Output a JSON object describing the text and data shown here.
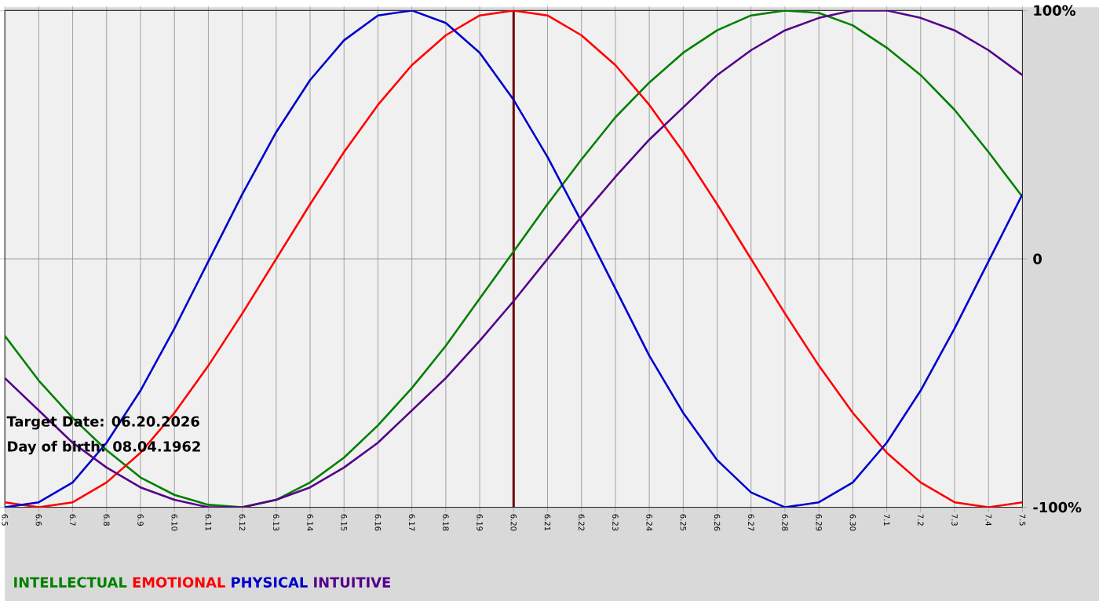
{
  "chart_data": {
    "type": "line",
    "categories": [
      "6.5",
      "6.6",
      "6.7",
      "6.8",
      "6.9",
      "6.10",
      "6.11",
      "6.12",
      "6.13",
      "6.14",
      "6.15",
      "6.16",
      "6.17",
      "6.18",
      "6.19",
      "6.20",
      "6.21",
      "6.22",
      "6.23",
      "6.24",
      "6.25",
      "6.26",
      "6.27",
      "6.28",
      "6.29",
      "6.30",
      "7.1",
      "7.2",
      "7.3",
      "7.4",
      "7.5"
    ],
    "series": [
      {
        "name": "INTELLECTUAL",
        "color": "#008000",
        "values": [
          -31,
          -49,
          -64,
          -77,
          -88,
          -95,
          -99,
          -100,
          -97,
          -90,
          -80,
          -67,
          -52,
          -35,
          -16,
          3,
          22,
          40,
          57,
          71,
          83,
          92,
          98,
          100,
          99,
          94,
          85,
          74,
          60,
          43,
          25
        ]
      },
      {
        "name": "EMOTIONAL",
        "color": "#ff0000",
        "values": [
          -98,
          -100,
          -98,
          -90,
          -78,
          -62,
          -43,
          -22,
          0,
          22,
          43,
          62,
          78,
          90,
          98,
          100,
          98,
          90,
          78,
          62,
          43,
          22,
          0,
          -22,
          -43,
          -62,
          -78,
          -90,
          -98,
          -100,
          -98
        ]
      },
      {
        "name": "PHYSICAL",
        "color": "#0000cc",
        "values": [
          -100,
          -98,
          -90,
          -74,
          -53,
          -28,
          -1,
          26,
          51,
          72,
          88,
          98,
          100,
          95,
          83,
          64,
          41,
          15,
          -12,
          -39,
          -62,
          -81,
          -94,
          -100,
          -98,
          -90,
          -74,
          -53,
          -28,
          -1,
          26
        ]
      },
      {
        "name": "INTUITIVE",
        "color": "#55008b",
        "values": [
          -48,
          -61,
          -74,
          -84,
          -92,
          -97,
          -100,
          -100,
          -97,
          -92,
          -84,
          -74,
          -61,
          -48,
          -33,
          -17,
          0,
          17,
          33,
          48,
          61,
          74,
          84,
          92,
          97,
          100,
          100,
          97,
          92,
          84,
          74
        ]
      }
    ],
    "ylim": [
      -100,
      100
    ],
    "yticks": [
      {
        "value": 100,
        "label": "100%"
      },
      0,
      {
        "value": -100,
        "label": "-100%"
      }
    ],
    "grid": true,
    "legend": "bottom left",
    "marker": "none",
    "line_style": "solid",
    "ref_lines": [
      {
        "axis": "x",
        "value": "6.20",
        "color": "#6b0000"
      }
    ],
    "annotations": [
      "Target Date: 06.20.2026",
      "Day of birth: 08.04.1962"
    ]
  }
}
